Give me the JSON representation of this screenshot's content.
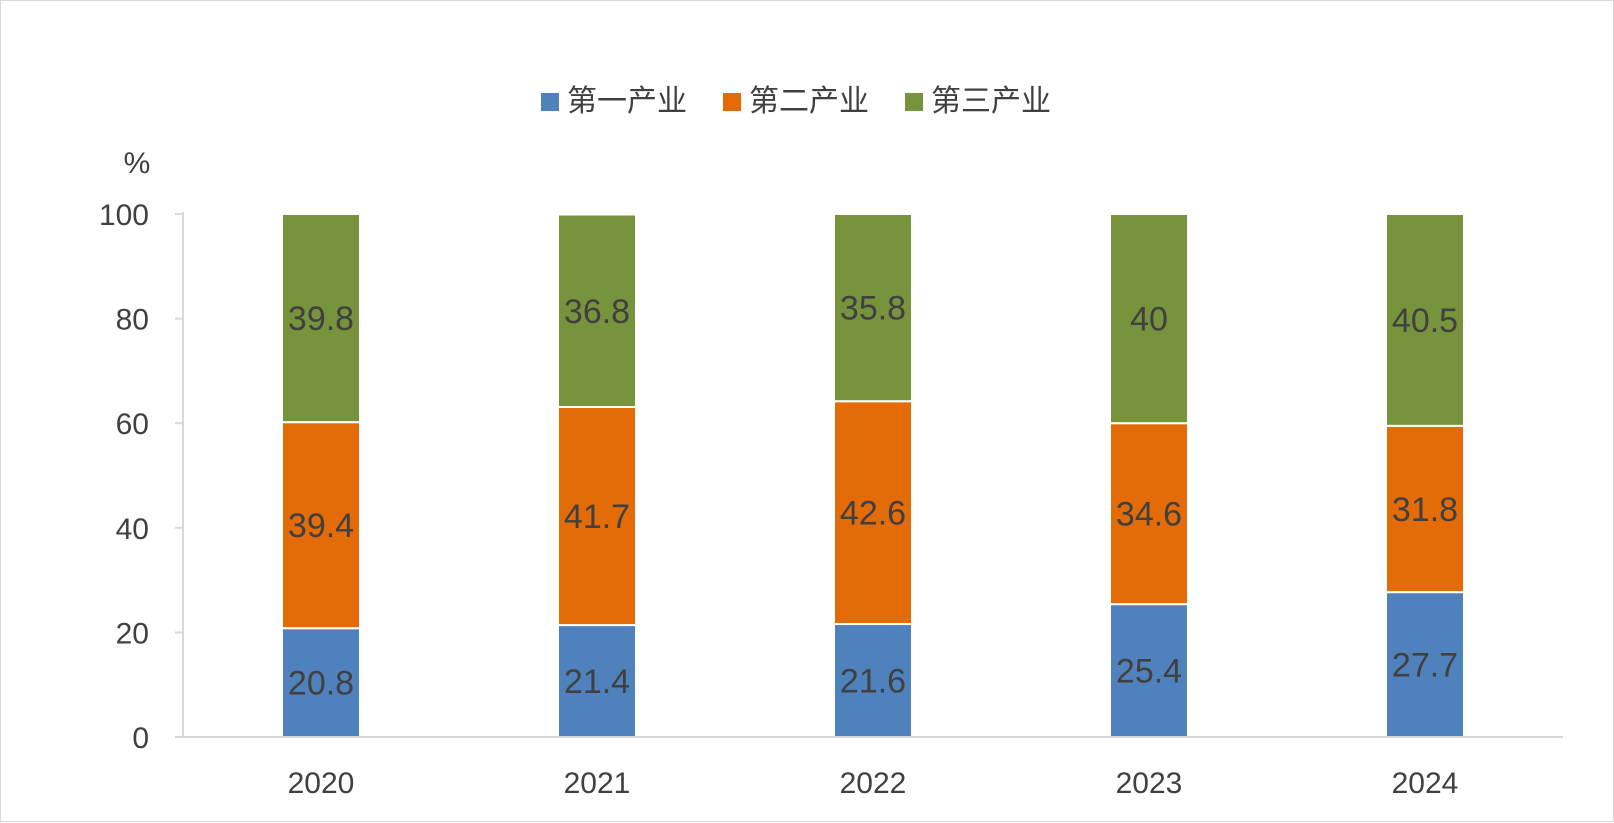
{
  "chart_data": {
    "type": "bar",
    "stacked": true,
    "title": "",
    "xlabel": "",
    "ylabel": "%",
    "ylim": [
      0,
      100
    ],
    "yticks": [
      "0",
      "20",
      "40",
      "60",
      "80",
      "100"
    ],
    "categories": [
      "2020",
      "2021",
      "2022",
      "2023",
      "2024"
    ],
    "legend_position": "top",
    "grid": false,
    "series": [
      {
        "name": "第一产业",
        "color": "#4f81bd",
        "values": [
          20.8,
          21.4,
          21.6,
          25.4,
          27.7
        ],
        "labels": [
          "20.8",
          "21.4",
          "21.6",
          "25.4",
          "27.7"
        ]
      },
      {
        "name": "第二产业",
        "color": "#e36c09",
        "values": [
          39.4,
          41.7,
          42.6,
          34.6,
          31.8
        ],
        "labels": [
          "39.4",
          "41.7",
          "42.6",
          "34.6",
          "31.8"
        ]
      },
      {
        "name": "第三产业",
        "color": "#77933c",
        "values": [
          39.8,
          36.8,
          35.8,
          40,
          40.5
        ],
        "labels": [
          "39.8",
          "36.8",
          "35.8",
          "40",
          "40.5"
        ]
      }
    ]
  }
}
